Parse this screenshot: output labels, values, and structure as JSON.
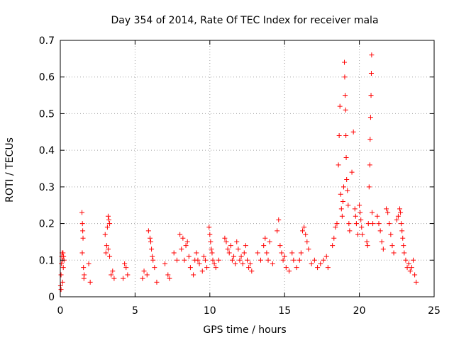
{
  "chart_data": {
    "type": "scatter",
    "title": "Day 354 of 2014, Rate Of TEC Index for receiver mala",
    "xlabel": "GPS time / hours",
    "ylabel": "ROTI / TECUs",
    "xlim": [
      0,
      25
    ],
    "ylim": [
      0,
      0.7
    ],
    "x_ticks": [
      0,
      5,
      10,
      15,
      20,
      25
    ],
    "y_ticks": [
      0,
      0.1,
      0.2,
      0.3,
      0.4,
      0.5,
      0.6,
      0.7
    ],
    "x_tick_labels": [
      "0",
      "5",
      "10",
      "15",
      "20",
      "25"
    ],
    "y_tick_labels": [
      "0",
      "0.1",
      "0.2",
      "0.3",
      "0.4",
      "0.5",
      "0.6",
      "0.7"
    ],
    "grid": true,
    "marker": "+",
    "color": "#ff0000",
    "series": [
      {
        "name": "ROTI",
        "points": [
          [
            0.02,
            0.03
          ],
          [
            0.05,
            0.06
          ],
          [
            0.08,
            0.09
          ],
          [
            0.1,
            0.11
          ],
          [
            0.12,
            0.12
          ],
          [
            0.15,
            0.1
          ],
          [
            0.18,
            0.12
          ],
          [
            0.2,
            0.08
          ],
          [
            0.22,
            0.11
          ],
          [
            0.25,
            0.1
          ],
          [
            0.05,
            0.02
          ],
          [
            0.15,
            0.04
          ],
          [
            1.45,
            0.23
          ],
          [
            1.48,
            0.2
          ],
          [
            1.5,
            0.18
          ],
          [
            1.52,
            0.16
          ],
          [
            1.47,
            0.12
          ],
          [
            1.55,
            0.08
          ],
          [
            1.6,
            0.06
          ],
          [
            1.58,
            0.05
          ],
          [
            1.9,
            0.09
          ],
          [
            2.0,
            0.04
          ],
          [
            3.0,
            0.17
          ],
          [
            3.1,
            0.14
          ],
          [
            3.2,
            0.22
          ],
          [
            3.25,
            0.21
          ],
          [
            3.15,
            0.19
          ],
          [
            3.3,
            0.2
          ],
          [
            3.05,
            0.12
          ],
          [
            3.2,
            0.13
          ],
          [
            3.3,
            0.11
          ],
          [
            3.4,
            0.06
          ],
          [
            3.5,
            0.07
          ],
          [
            3.6,
            0.05
          ],
          [
            4.2,
            0.05
          ],
          [
            4.3,
            0.09
          ],
          [
            4.4,
            0.08
          ],
          [
            4.5,
            0.06
          ],
          [
            5.5,
            0.05
          ],
          [
            5.6,
            0.07
          ],
          [
            5.8,
            0.06
          ],
          [
            5.9,
            0.18
          ],
          [
            6.0,
            0.16
          ],
          [
            6.05,
            0.15
          ],
          [
            6.1,
            0.13
          ],
          [
            6.15,
            0.11
          ],
          [
            6.2,
            0.1
          ],
          [
            6.3,
            0.08
          ],
          [
            6.45,
            0.04
          ],
          [
            7.0,
            0.09
          ],
          [
            7.2,
            0.06
          ],
          [
            7.3,
            0.05
          ],
          [
            7.6,
            0.12
          ],
          [
            7.8,
            0.1
          ],
          [
            8.0,
            0.17
          ],
          [
            8.2,
            0.16
          ],
          [
            8.1,
            0.13
          ],
          [
            8.3,
            0.1
          ],
          [
            8.4,
            0.14
          ],
          [
            8.5,
            0.15
          ],
          [
            8.6,
            0.11
          ],
          [
            8.7,
            0.08
          ],
          [
            8.9,
            0.06
          ],
          [
            9.0,
            0.1
          ],
          [
            9.1,
            0.12
          ],
          [
            9.2,
            0.1
          ],
          [
            9.3,
            0.09
          ],
          [
            9.5,
            0.07
          ],
          [
            9.6,
            0.11
          ],
          [
            9.7,
            0.1
          ],
          [
            9.8,
            0.08
          ],
          [
            9.95,
            0.19
          ],
          [
            10.0,
            0.17
          ],
          [
            10.05,
            0.15
          ],
          [
            10.1,
            0.13
          ],
          [
            10.15,
            0.12
          ],
          [
            10.2,
            0.1
          ],
          [
            10.3,
            0.09
          ],
          [
            10.4,
            0.08
          ],
          [
            10.6,
            0.1
          ],
          [
            11.0,
            0.16
          ],
          [
            11.1,
            0.15
          ],
          [
            11.2,
            0.13
          ],
          [
            11.3,
            0.12
          ],
          [
            11.4,
            0.14
          ],
          [
            11.5,
            0.1
          ],
          [
            11.6,
            0.11
          ],
          [
            11.7,
            0.09
          ],
          [
            11.8,
            0.15
          ],
          [
            11.9,
            0.13
          ],
          [
            12.0,
            0.1
          ],
          [
            12.1,
            0.11
          ],
          [
            12.2,
            0.09
          ],
          [
            12.3,
            0.12
          ],
          [
            12.4,
            0.14
          ],
          [
            12.5,
            0.1
          ],
          [
            12.6,
            0.08
          ],
          [
            12.7,
            0.09
          ],
          [
            12.8,
            0.07
          ],
          [
            13.2,
            0.12
          ],
          [
            13.4,
            0.1
          ],
          [
            13.6,
            0.14
          ],
          [
            13.7,
            0.16
          ],
          [
            13.8,
            0.12
          ],
          [
            13.9,
            0.1
          ],
          [
            14.0,
            0.15
          ],
          [
            14.2,
            0.09
          ],
          [
            14.5,
            0.18
          ],
          [
            14.6,
            0.21
          ],
          [
            14.7,
            0.14
          ],
          [
            14.8,
            0.12
          ],
          [
            14.9,
            0.1
          ],
          [
            15.0,
            0.11
          ],
          [
            15.1,
            0.08
          ],
          [
            15.3,
            0.07
          ],
          [
            15.5,
            0.12
          ],
          [
            15.6,
            0.1
          ],
          [
            15.8,
            0.08
          ],
          [
            16.0,
            0.1
          ],
          [
            16.1,
            0.12
          ],
          [
            16.2,
            0.18
          ],
          [
            16.3,
            0.19
          ],
          [
            16.4,
            0.17
          ],
          [
            16.5,
            0.15
          ],
          [
            16.6,
            0.13
          ],
          [
            16.8,
            0.09
          ],
          [
            17.0,
            0.1
          ],
          [
            17.2,
            0.08
          ],
          [
            17.4,
            0.09
          ],
          [
            17.6,
            0.1
          ],
          [
            17.8,
            0.11
          ],
          [
            17.9,
            0.08
          ],
          [
            18.2,
            0.14
          ],
          [
            18.3,
            0.16
          ],
          [
            18.4,
            0.19
          ],
          [
            18.5,
            0.2
          ],
          [
            18.6,
            0.36
          ],
          [
            18.65,
            0.44
          ],
          [
            18.7,
            0.52
          ],
          [
            18.75,
            0.28
          ],
          [
            18.8,
            0.24
          ],
          [
            18.85,
            0.22
          ],
          [
            18.9,
            0.26
          ],
          [
            18.95,
            0.3
          ],
          [
            19.0,
            0.64
          ],
          [
            19.02,
            0.6
          ],
          [
            19.05,
            0.55
          ],
          [
            19.08,
            0.51
          ],
          [
            19.1,
            0.44
          ],
          [
            19.12,
            0.38
          ],
          [
            19.15,
            0.32
          ],
          [
            19.2,
            0.29
          ],
          [
            19.25,
            0.25
          ],
          [
            19.3,
            0.2
          ],
          [
            19.35,
            0.18
          ],
          [
            19.5,
            0.34
          ],
          [
            19.6,
            0.45
          ],
          [
            19.7,
            0.24
          ],
          [
            19.75,
            0.22
          ],
          [
            19.8,
            0.2
          ],
          [
            19.9,
            0.17
          ],
          [
            20.0,
            0.25
          ],
          [
            20.05,
            0.23
          ],
          [
            20.1,
            0.21
          ],
          [
            20.15,
            0.19
          ],
          [
            20.2,
            0.17
          ],
          [
            20.5,
            0.15
          ],
          [
            20.55,
            0.14
          ],
          [
            20.6,
            0.2
          ],
          [
            20.65,
            0.3
          ],
          [
            20.7,
            0.36
          ],
          [
            20.72,
            0.43
          ],
          [
            20.75,
            0.49
          ],
          [
            20.78,
            0.55
          ],
          [
            20.8,
            0.61
          ],
          [
            20.82,
            0.66
          ],
          [
            20.85,
            0.23
          ],
          [
            20.9,
            0.2
          ],
          [
            21.2,
            0.22
          ],
          [
            21.3,
            0.2
          ],
          [
            21.4,
            0.18
          ],
          [
            21.5,
            0.15
          ],
          [
            21.6,
            0.13
          ],
          [
            21.8,
            0.24
          ],
          [
            21.9,
            0.23
          ],
          [
            22.0,
            0.2
          ],
          [
            22.1,
            0.17
          ],
          [
            22.2,
            0.14
          ],
          [
            22.3,
            0.12
          ],
          [
            22.5,
            0.21
          ],
          [
            22.6,
            0.22
          ],
          [
            22.7,
            0.24
          ],
          [
            22.75,
            0.23
          ],
          [
            22.8,
            0.2
          ],
          [
            22.85,
            0.18
          ],
          [
            22.9,
            0.16
          ],
          [
            22.95,
            0.14
          ],
          [
            23.0,
            0.12
          ],
          [
            23.1,
            0.1
          ],
          [
            23.2,
            0.08
          ],
          [
            23.3,
            0.09
          ],
          [
            23.4,
            0.07
          ],
          [
            23.5,
            0.08
          ],
          [
            23.6,
            0.1
          ],
          [
            23.7,
            0.06
          ],
          [
            23.8,
            0.04
          ]
        ]
      }
    ]
  }
}
